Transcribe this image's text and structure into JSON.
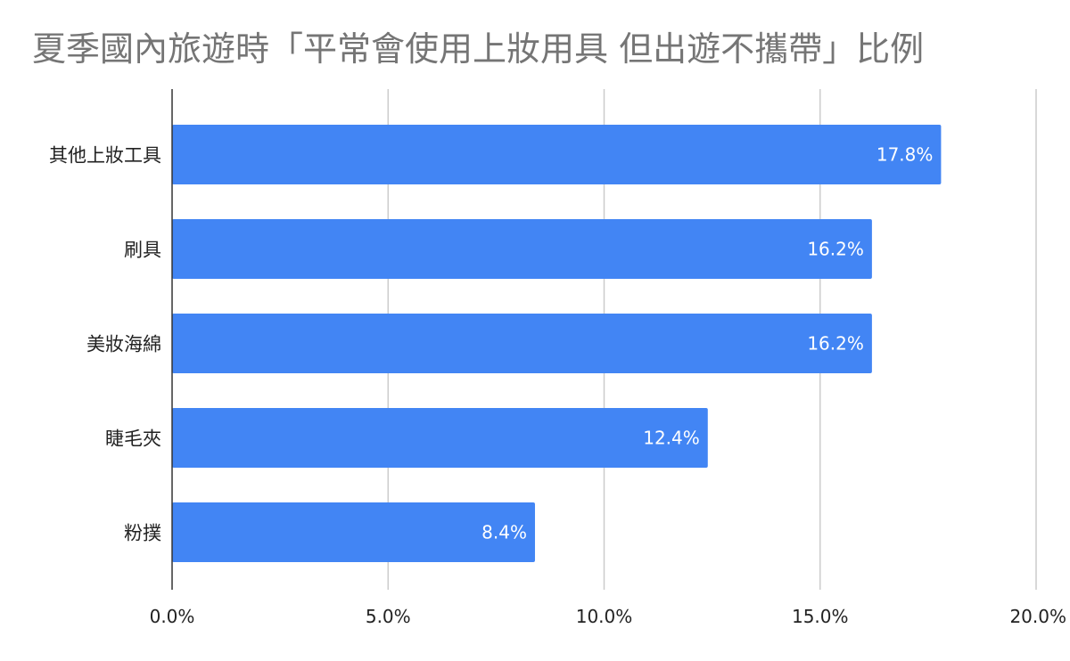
{
  "chart_data": {
    "type": "bar",
    "orientation": "horizontal",
    "title": "夏季國內旅遊時「平常會使用上妝用具 但出遊不攜帶」比例",
    "categories": [
      "其他上妝工具",
      "刷具",
      "美妝海綿",
      "睫毛夾",
      "粉撲"
    ],
    "values": [
      17.8,
      16.2,
      16.2,
      12.4,
      8.4
    ],
    "value_labels": [
      "17.8%",
      "16.2%",
      "16.2%",
      "12.4%",
      "8.4%"
    ],
    "x_ticks": [
      0,
      5,
      10,
      15,
      20
    ],
    "x_tick_labels": [
      "0.0%",
      "5.0%",
      "10.0%",
      "15.0%",
      "20.0%"
    ],
    "xlim": [
      0,
      20
    ],
    "grid": "vertical",
    "legend": "none",
    "bar_color": "#4285f4",
    "grid_color": "#cccccc",
    "axis_color": "#333333",
    "title_color": "#757575",
    "label_color": "#222222"
  }
}
